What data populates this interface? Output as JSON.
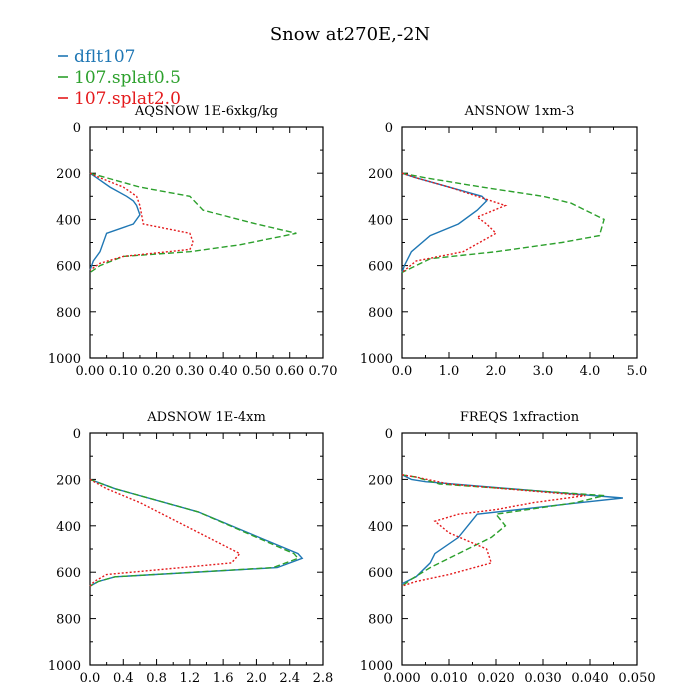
{
  "title": "Snow at270E,-2N",
  "legend": [
    {
      "name": "dflt107",
      "color": "#1f77b4",
      "dash": "solid"
    },
    {
      "name": "107.splat0.5",
      "color": "#2ca02c",
      "dash": "dashed"
    },
    {
      "name": "107.splat2.0",
      "color": "#e41a1c",
      "dash": "dotted"
    }
  ],
  "chart_data": [
    {
      "type": "line",
      "title": "AQSNOW  1E-6xkg/kg",
      "xlim": [
        0,
        0.7
      ],
      "ylim": [
        1000,
        0
      ],
      "xticks": [
        0,
        0.1,
        0.2,
        0.3,
        0.4,
        0.5,
        0.6,
        0.7
      ],
      "xticklabels": [
        "0.00",
        "0.10",
        "0.20",
        "0.30",
        "0.40",
        "0.50",
        "0.60",
        "0.70"
      ],
      "yticks": [
        0,
        200,
        400,
        600,
        800,
        1000
      ],
      "yticklabels": [
        "0",
        "200",
        "400",
        "600",
        "800",
        "1000"
      ],
      "series": [
        {
          "name": "dflt107",
          "x": [
            0,
            0.02,
            0.06,
            0.11,
            0.13,
            0.14,
            0.15,
            0.13,
            0.05,
            0.03,
            0.01,
            0
          ],
          "y": [
            200,
            220,
            260,
            300,
            320,
            340,
            380,
            420,
            460,
            540,
            580,
            620
          ]
        },
        {
          "name": "107.splat0.5",
          "x": [
            0,
            0.05,
            0.15,
            0.3,
            0.34,
            0.5,
            0.62,
            0.45,
            0.3,
            0.1,
            0.03,
            0
          ],
          "y": [
            200,
            220,
            260,
            300,
            360,
            420,
            460,
            510,
            540,
            560,
            600,
            630
          ]
        },
        {
          "name": "107.splat2.0",
          "x": [
            0,
            0.03,
            0.1,
            0.14,
            0.15,
            0.16,
            0.3,
            0.31,
            0.3,
            0.1,
            0.03,
            0
          ],
          "y": [
            200,
            220,
            260,
            300,
            340,
            420,
            460,
            500,
            530,
            560,
            590,
            620
          ]
        }
      ]
    },
    {
      "type": "line",
      "title": "ANSNOW  1xm-3",
      "xlim": [
        0,
        5
      ],
      "ylim": [
        1000,
        0
      ],
      "xticks": [
        0,
        1,
        2,
        3,
        4,
        5
      ],
      "xticklabels": [
        "0.0",
        "1.0",
        "2.0",
        "3.0",
        "4.0",
        "5.0"
      ],
      "yticks": [
        0,
        200,
        400,
        600,
        800,
        1000
      ],
      "yticklabels": [
        "0",
        "200",
        "400",
        "600",
        "800",
        "1000"
      ],
      "series": [
        {
          "name": "dflt107",
          "x": [
            0,
            0.3,
            1.0,
            1.7,
            1.8,
            1.6,
            1.2,
            0.6,
            0.2,
            0.05,
            0
          ],
          "y": [
            200,
            220,
            260,
            300,
            320,
            360,
            420,
            470,
            540,
            600,
            630
          ]
        },
        {
          "name": "107.splat0.5",
          "x": [
            0,
            0.5,
            1.7,
            3.0,
            3.6,
            3.9,
            4.3,
            4.2,
            3.4,
            2.0,
            0.6,
            0
          ],
          "y": [
            200,
            220,
            260,
            300,
            330,
            360,
            400,
            470,
            500,
            540,
            570,
            630
          ]
        },
        {
          "name": "107.splat2.0",
          "x": [
            0,
            0.3,
            1.0,
            1.6,
            2.2,
            1.6,
            1.8,
            2.0,
            1.3,
            0.3,
            0
          ],
          "y": [
            200,
            220,
            260,
            300,
            340,
            390,
            420,
            460,
            540,
            580,
            630
          ]
        }
      ]
    },
    {
      "type": "line",
      "title": "ADSNOW  1E-4xm",
      "xlim": [
        0,
        2.8
      ],
      "ylim": [
        1000,
        0
      ],
      "xticks": [
        0,
        0.4,
        0.8,
        1.2,
        1.6,
        2.0,
        2.4,
        2.8
      ],
      "xticklabels": [
        "0.0",
        "0.4",
        "0.8",
        "1.2",
        "1.6",
        "2.0",
        "2.4",
        "2.8"
      ],
      "yticks": [
        0,
        200,
        400,
        600,
        800,
        1000
      ],
      "yticklabels": [
        "0",
        "200",
        "400",
        "600",
        "800",
        "1000"
      ],
      "series": [
        {
          "name": "dflt107",
          "x": [
            0,
            0.3,
            1.3,
            2.5,
            2.55,
            2.25,
            0.3,
            0.1,
            0
          ],
          "y": [
            200,
            240,
            340,
            520,
            540,
            580,
            620,
            640,
            660
          ]
        },
        {
          "name": "107.splat0.5",
          "x": [
            0,
            0.3,
            1.3,
            2.45,
            2.5,
            2.2,
            0.3,
            0.1,
            0
          ],
          "y": [
            200,
            240,
            340,
            520,
            540,
            580,
            620,
            640,
            660
          ]
        },
        {
          "name": "107.splat2.0",
          "x": [
            0,
            0.2,
            0.6,
            1.8,
            1.7,
            0.8,
            0.2,
            0.05,
            0
          ],
          "y": [
            200,
            240,
            300,
            520,
            560,
            590,
            610,
            640,
            660
          ]
        }
      ]
    },
    {
      "type": "line",
      "title": "FREQS  1xfraction",
      "xlim": [
        0,
        0.05
      ],
      "ylim": [
        1000,
        0
      ],
      "xticks": [
        0,
        0.01,
        0.02,
        0.03,
        0.04,
        0.05
      ],
      "xticklabels": [
        "0.000",
        "0.010",
        "0.020",
        "0.030",
        "0.040",
        "0.050"
      ],
      "yticks": [
        0,
        200,
        400,
        600,
        800,
        1000
      ],
      "yticklabels": [
        "0",
        "200",
        "400",
        "600",
        "800",
        "1000"
      ],
      "series": [
        {
          "name": "dflt107",
          "x": [
            0,
            0.002,
            0.005,
            0.047,
            0.038,
            0.016,
            0.014,
            0.012,
            0.007,
            0.006,
            0.003,
            0
          ],
          "y": [
            180,
            200,
            210,
            280,
            300,
            350,
            400,
            450,
            520,
            560,
            620,
            650
          ]
        },
        {
          "name": "107.splat0.5",
          "x": [
            0,
            0.003,
            0.008,
            0.043,
            0.037,
            0.02,
            0.022,
            0.019,
            0.012,
            0.006,
            0.002,
            0
          ],
          "y": [
            180,
            190,
            220,
            270,
            300,
            350,
            400,
            450,
            520,
            580,
            630,
            660
          ]
        },
        {
          "name": "107.splat2.0",
          "x": [
            0,
            0.003,
            0.01,
            0.039,
            0.028,
            0.02,
            0.012,
            0.007,
            0.01,
            0.018,
            0.019,
            0.01,
            0.003,
            0
          ],
          "y": [
            180,
            190,
            220,
            270,
            300,
            330,
            350,
            380,
            430,
            500,
            560,
            610,
            640,
            660
          ]
        }
      ]
    }
  ]
}
